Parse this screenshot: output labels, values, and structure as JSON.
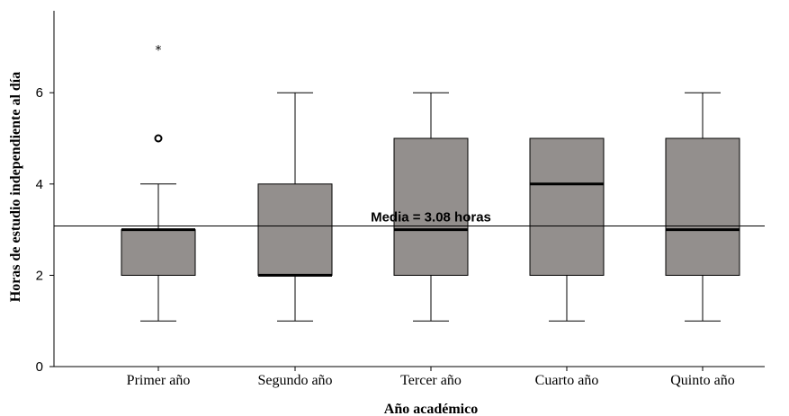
{
  "chart_data": {
    "type": "boxplot",
    "xlabel": "Año académico",
    "ylabel": "Horas de estudio independiente al día",
    "ylim": [
      0,
      7.8
    ],
    "yticks": [
      0,
      2,
      4,
      6
    ],
    "grid": false,
    "categories": [
      "Primer año",
      "Segundo año",
      "Tercer año",
      "Cuarto año",
      "Quinto año"
    ],
    "boxes": [
      {
        "category": "Primer año",
        "min": 1,
        "q1": 2,
        "median": 3,
        "q3": 3,
        "max": 4,
        "outliers": [
          {
            "value": 5,
            "marker": "circle"
          },
          {
            "value": 7,
            "marker": "*"
          }
        ]
      },
      {
        "category": "Segundo año",
        "min": 1,
        "q1": 2,
        "median": 2,
        "q3": 4,
        "max": 6,
        "outliers": []
      },
      {
        "category": "Tercer año",
        "min": 1,
        "q1": 2,
        "median": 3,
        "q3": 5,
        "max": 6,
        "outliers": []
      },
      {
        "category": "Cuarto año",
        "min": 1,
        "q1": 2,
        "median": 4,
        "q3": 5,
        "max": 5,
        "outliers": []
      },
      {
        "category": "Quinto año",
        "min": 1,
        "q1": 2,
        "median": 3,
        "q3": 5,
        "max": 6,
        "outliers": []
      }
    ],
    "reference_line": {
      "value": 3.08,
      "label": "Media = 3.08 horas"
    },
    "box_color": "#938f8d"
  }
}
